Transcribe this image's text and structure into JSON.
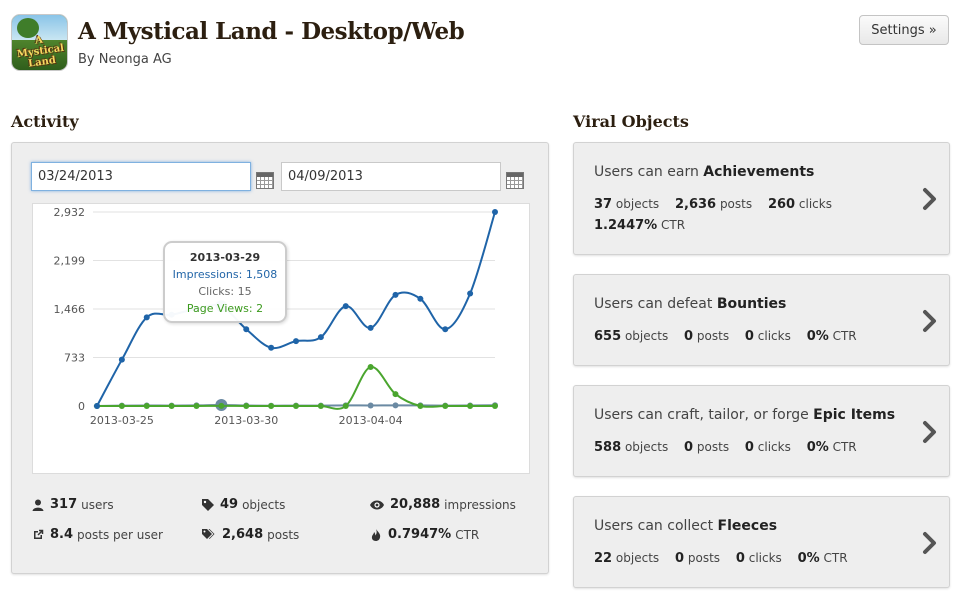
{
  "app": {
    "icon_text": "A Mystical Land",
    "title": "A Mystical Land - Desktop/Web",
    "author": "By Neonga AG",
    "settings_label": "Settings »"
  },
  "activity": {
    "heading": "Activity",
    "start_date": "03/24/2013",
    "end_date": "04/09/2013",
    "tooltip": {
      "date": "2013-03-29",
      "impressions": "Impressions: 1,508",
      "clicks": "Clicks: 15",
      "page_views": "Page Views: 2"
    },
    "stats": {
      "users": {
        "value": "317",
        "label": "users",
        "icon": "user-icon"
      },
      "objects": {
        "value": "49",
        "label": "objects",
        "icon": "tag-icon"
      },
      "impressions": {
        "value": "20,888",
        "label": "impressions",
        "icon": "eye-icon"
      },
      "posts_per_user": {
        "value": "8.4",
        "label": "posts per user",
        "icon": "share-icon"
      },
      "posts": {
        "value": "2,648",
        "label": "posts",
        "icon": "tags-icon"
      },
      "ctr": {
        "value": "0.7947%",
        "label": "CTR",
        "icon": "fire-icon"
      }
    }
  },
  "chart_data": {
    "type": "line",
    "x": [
      "2013-03-24",
      "2013-03-25",
      "2013-03-26",
      "2013-03-27",
      "2013-03-28",
      "2013-03-29",
      "2013-03-30",
      "2013-03-31",
      "2013-04-01",
      "2013-04-02",
      "2013-04-03",
      "2013-04-04",
      "2013-04-05",
      "2013-04-06",
      "2013-04-07",
      "2013-04-08",
      "2013-04-09"
    ],
    "x_tick_labels": [
      "2013-03-25",
      "2013-03-30",
      "2013-04-04"
    ],
    "y_ticks": [
      "0",
      "733",
      "1,466",
      "2,199",
      "2,932"
    ],
    "ylim": [
      0,
      2932
    ],
    "grid": true,
    "series": [
      {
        "name": "Impressions",
        "color": "#1f64a8",
        "values": [
          0,
          700,
          1340,
          1380,
          1470,
          1508,
          1160,
          880,
          980,
          1040,
          1510,
          1180,
          1680,
          1620,
          1160,
          1700,
          2932
        ]
      },
      {
        "name": "Clicks",
        "color": "#6b8aa3",
        "values": [
          0,
          5,
          8,
          6,
          9,
          15,
          7,
          4,
          6,
          5,
          9,
          8,
          10,
          9,
          6,
          8,
          12
        ]
      },
      {
        "name": "Page Views",
        "color": "#4aa52e",
        "values": [
          0,
          0,
          0,
          0,
          0,
          2,
          0,
          0,
          0,
          0,
          0,
          590,
          180,
          0,
          0,
          0,
          0
        ]
      }
    ]
  },
  "viral": {
    "heading": "Viral Objects",
    "cards": [
      {
        "prefix": "Users can earn ",
        "name": "Achievements",
        "objects": "37",
        "posts": "2,636",
        "clicks": "260",
        "ctr": "1.2447%"
      },
      {
        "prefix": "Users can defeat ",
        "name": "Bounties",
        "objects": "655",
        "posts": "0",
        "clicks": "0",
        "ctr": "0%"
      },
      {
        "prefix": "Users can craft, tailor, or forge ",
        "name": "Epic Items",
        "objects": "588",
        "posts": "0",
        "clicks": "0",
        "ctr": "0%"
      },
      {
        "prefix": "Users can collect ",
        "name": "Fleeces",
        "objects": "22",
        "posts": "0",
        "clicks": "0",
        "ctr": "0%"
      }
    ],
    "labels": {
      "objects": "objects",
      "posts": "posts",
      "clicks": "clicks",
      "ctr": "CTR"
    }
  }
}
